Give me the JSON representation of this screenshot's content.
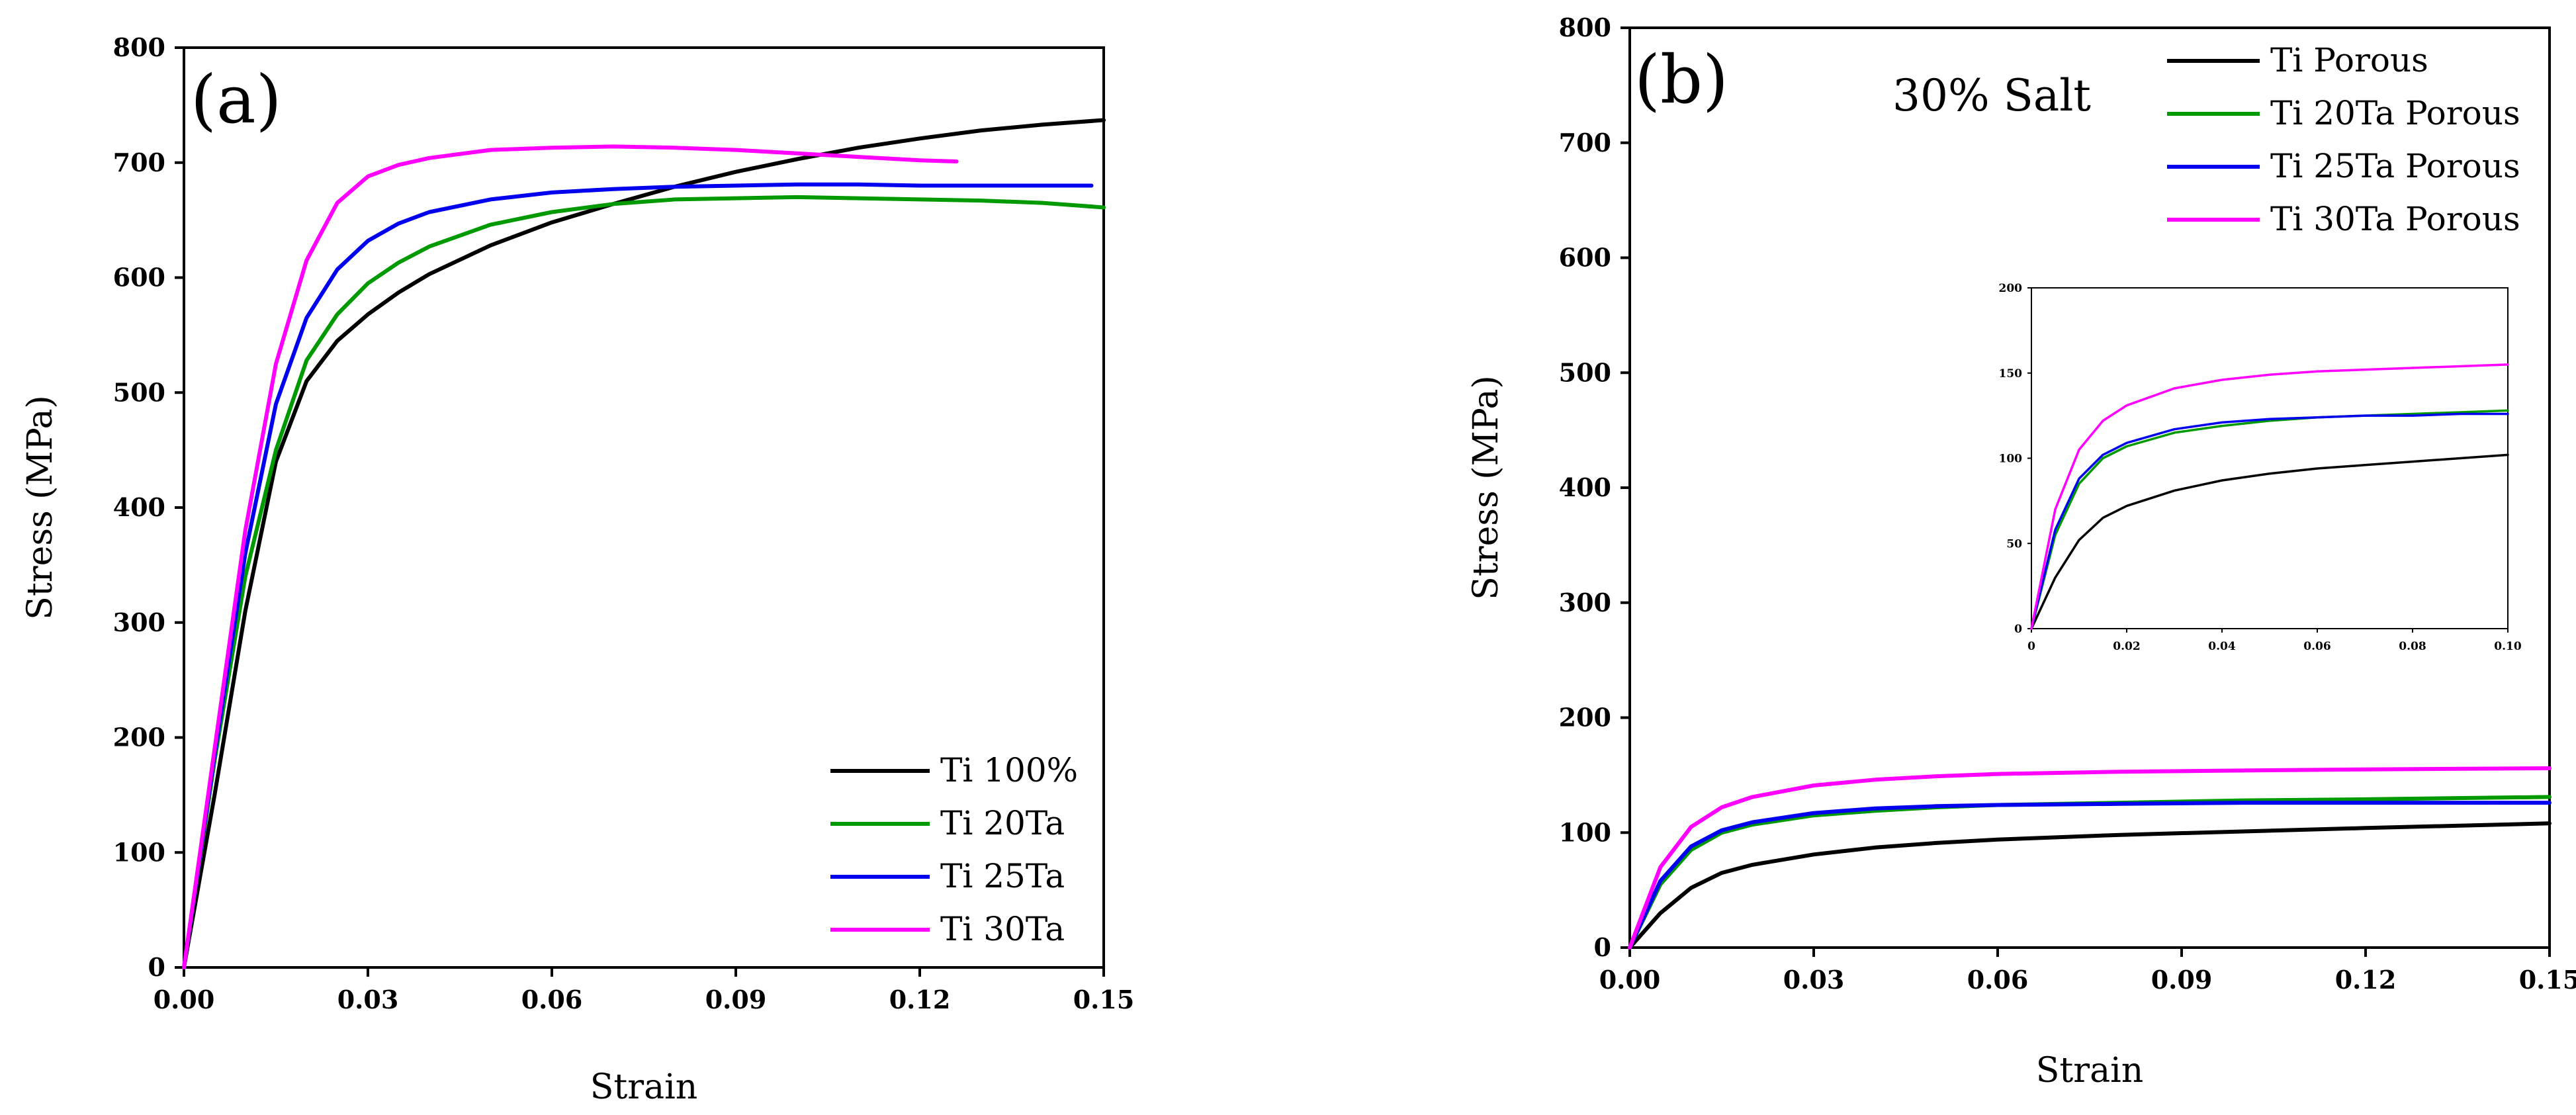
{
  "chart_data": [
    {
      "type": "line",
      "panel_label": "(a)",
      "xlabel": "Strain",
      "ylabel": "Stress (MPa)",
      "xlim": [
        0,
        0.15
      ],
      "ylim": [
        0,
        800
      ],
      "xticks": [
        "0.00",
        "0.03",
        "0.06",
        "0.09",
        "0.12",
        "0.15"
      ],
      "yticks": [
        "0",
        "100",
        "200",
        "300",
        "400",
        "500",
        "600",
        "700",
        "800"
      ],
      "legend_position": "bottom-right",
      "series": [
        {
          "name": "Ti 100%",
          "color": "#000000",
          "x": [
            0,
            0.005,
            0.01,
            0.015,
            0.02,
            0.025,
            0.03,
            0.035,
            0.04,
            0.05,
            0.06,
            0.07,
            0.08,
            0.09,
            0.1,
            0.11,
            0.12,
            0.13,
            0.14,
            0.15
          ],
          "y": [
            0,
            150,
            310,
            440,
            510,
            545,
            568,
            587,
            603,
            628,
            648,
            664,
            679,
            692,
            703,
            713,
            721,
            728,
            733,
            737
          ]
        },
        {
          "name": "Ti 20Ta",
          "color": "#009900",
          "x": [
            0,
            0.005,
            0.01,
            0.015,
            0.02,
            0.025,
            0.03,
            0.035,
            0.04,
            0.05,
            0.06,
            0.07,
            0.08,
            0.09,
            0.1,
            0.11,
            0.12,
            0.13,
            0.14,
            0.15
          ],
          "y": [
            0,
            180,
            340,
            450,
            528,
            568,
            595,
            613,
            627,
            646,
            657,
            664,
            668,
            669,
            670,
            669,
            668,
            667,
            665,
            661
          ]
        },
        {
          "name": "Ti 25Ta",
          "color": "#0000ee",
          "x": [
            0,
            0.005,
            0.01,
            0.015,
            0.02,
            0.025,
            0.03,
            0.035,
            0.04,
            0.05,
            0.06,
            0.07,
            0.08,
            0.09,
            0.1,
            0.11,
            0.12,
            0.13,
            0.14,
            0.148
          ],
          "y": [
            0,
            185,
            360,
            490,
            565,
            607,
            632,
            647,
            657,
            668,
            674,
            677,
            679,
            680,
            681,
            681,
            680,
            680,
            680,
            680
          ]
        },
        {
          "name": "Ti 30Ta",
          "color": "#ff00ff",
          "x": [
            0,
            0.005,
            0.01,
            0.015,
            0.02,
            0.025,
            0.03,
            0.035,
            0.04,
            0.05,
            0.06,
            0.07,
            0.08,
            0.09,
            0.1,
            0.11,
            0.12,
            0.126
          ],
          "y": [
            0,
            190,
            380,
            525,
            615,
            665,
            688,
            698,
            704,
            711,
            713,
            714,
            713,
            711,
            708,
            705,
            702,
            701
          ]
        }
      ]
    },
    {
      "type": "line",
      "panel_label": "(b)",
      "annotation": "30% Salt",
      "xlabel": "Strain",
      "ylabel": "Stress (MPa)",
      "xlim": [
        0,
        0.15
      ],
      "ylim": [
        0,
        800
      ],
      "xticks": [
        "0.00",
        "0.03",
        "0.06",
        "0.09",
        "0.12",
        "0.15"
      ],
      "yticks": [
        "0",
        "100",
        "200",
        "300",
        "400",
        "500",
        "600",
        "700",
        "800"
      ],
      "legend_position": "top-right",
      "series": [
        {
          "name": "Ti Porous",
          "color": "#000000",
          "x": [
            0,
            0.005,
            0.01,
            0.015,
            0.02,
            0.03,
            0.04,
            0.05,
            0.06,
            0.08,
            0.1,
            0.12,
            0.15
          ],
          "y": [
            0,
            30,
            52,
            65,
            72,
            81,
            87,
            91,
            94,
            98,
            101,
            104,
            108
          ]
        },
        {
          "name": "Ti 20Ta Porous",
          "color": "#009900",
          "x": [
            0,
            0.005,
            0.01,
            0.015,
            0.02,
            0.03,
            0.04,
            0.05,
            0.06,
            0.08,
            0.1,
            0.12,
            0.15
          ],
          "y": [
            0,
            55,
            85,
            100,
            107,
            115,
            119,
            122,
            124,
            126,
            128,
            129,
            131
          ]
        },
        {
          "name": "Ti 25Ta Porous",
          "color": "#0000ee",
          "x": [
            0,
            0.005,
            0.01,
            0.015,
            0.02,
            0.03,
            0.04,
            0.05,
            0.06,
            0.08,
            0.1,
            0.12,
            0.15
          ],
          "y": [
            0,
            58,
            88,
            102,
            109,
            117,
            121,
            123,
            124,
            125,
            126,
            126,
            126
          ]
        },
        {
          "name": "Ti 30Ta Porous",
          "color": "#ff00ff",
          "x": [
            0,
            0.005,
            0.01,
            0.015,
            0.02,
            0.03,
            0.04,
            0.05,
            0.06,
            0.08,
            0.1,
            0.12,
            0.15
          ],
          "y": [
            0,
            70,
            105,
            122,
            131,
            141,
            146,
            149,
            151,
            153,
            154,
            155,
            156
          ]
        }
      ],
      "inset": {
        "type": "line",
        "xlim": [
          0,
          0.1
        ],
        "ylim": [
          0,
          200
        ],
        "xticks": [
          "0",
          "0.02",
          "0.04",
          "0.06",
          "0.08",
          "0.10"
        ],
        "yticks": [
          "0",
          "50",
          "100",
          "150",
          "200"
        ],
        "series": [
          {
            "name": "Ti Porous",
            "color": "#000000",
            "x": [
              0,
              0.005,
              0.01,
              0.015,
              0.02,
              0.03,
              0.04,
              0.05,
              0.06,
              0.07,
              0.08,
              0.09,
              0.1
            ],
            "y": [
              0,
              30,
              52,
              65,
              72,
              81,
              87,
              91,
              94,
              96,
              98,
              100,
              102
            ]
          },
          {
            "name": "Ti 20Ta Porous",
            "color": "#009900",
            "x": [
              0,
              0.005,
              0.01,
              0.015,
              0.02,
              0.03,
              0.04,
              0.05,
              0.06,
              0.07,
              0.08,
              0.09,
              0.1
            ],
            "y": [
              0,
              55,
              85,
              100,
              107,
              115,
              119,
              122,
              124,
              125,
              126,
              127,
              128
            ]
          },
          {
            "name": "Ti 25Ta Porous",
            "color": "#0000ee",
            "x": [
              0,
              0.005,
              0.01,
              0.015,
              0.02,
              0.03,
              0.04,
              0.05,
              0.06,
              0.07,
              0.08,
              0.09,
              0.1
            ],
            "y": [
              0,
              58,
              88,
              102,
              109,
              117,
              121,
              123,
              124,
              125,
              125,
              126,
              126
            ]
          },
          {
            "name": "Ti 30Ta Porous",
            "color": "#ff00ff",
            "x": [
              0,
              0.005,
              0.01,
              0.015,
              0.02,
              0.03,
              0.04,
              0.05,
              0.06,
              0.07,
              0.08,
              0.09,
              0.1
            ],
            "y": [
              0,
              70,
              105,
              122,
              131,
              141,
              146,
              149,
              151,
              152,
              153,
              154,
              155
            ]
          }
        ]
      }
    }
  ]
}
